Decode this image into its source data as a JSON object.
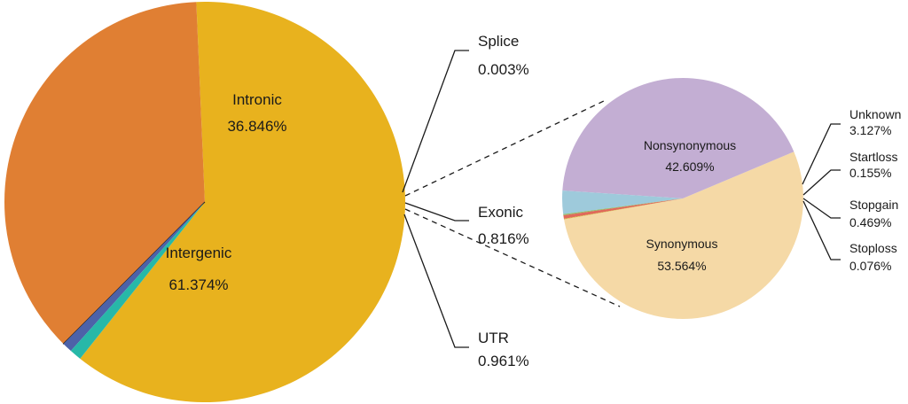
{
  "chart_data": [
    {
      "type": "pie",
      "slices": [
        {
          "name": "Intergenic",
          "value": 61.374,
          "label": "61.374%",
          "color": "#e8b21e"
        },
        {
          "name": "Intronic",
          "value": 36.846,
          "label": "36.846%",
          "color": "#e07f33"
        },
        {
          "name": "Splice",
          "value": 0.003,
          "label": "0.003%",
          "color": "#1a1a1a"
        },
        {
          "name": "Exonic",
          "value": 0.816,
          "label": "0.816%",
          "color": "#4d62a8"
        },
        {
          "name": "UTR",
          "value": 0.961,
          "label": "0.961%",
          "color": "#27b8a8"
        }
      ]
    },
    {
      "type": "pie",
      "slices": [
        {
          "name": "Synonymous",
          "value": 53.564,
          "label": "53.564%",
          "color": "#f5d9a6"
        },
        {
          "name": "Nonsynonymous",
          "value": 42.609,
          "label": "42.609%",
          "color": "#c3aed3"
        },
        {
          "name": "Unknown",
          "value": 3.127,
          "label": "3.127%",
          "color": "#9ecadb"
        },
        {
          "name": "Startloss",
          "value": 0.155,
          "label": "0.155%",
          "color": "#8fbf6a"
        },
        {
          "name": "Stopgain",
          "value": 0.469,
          "label": "0.469%",
          "color": "#e06a5a"
        },
        {
          "name": "Stoploss",
          "value": 0.076,
          "label": "0.076%",
          "color": "#d3c03a"
        }
      ]
    }
  ]
}
